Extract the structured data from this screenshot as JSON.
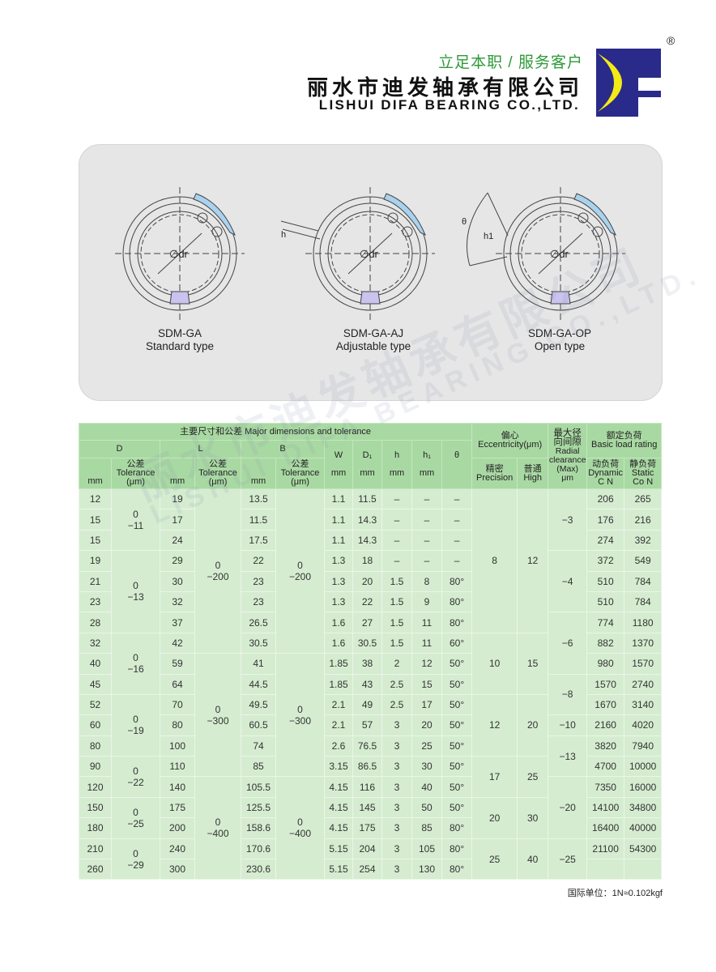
{
  "header": {
    "slogan": "立足本职 / 服务客户",
    "company_cn": "丽水市迪发轴承有限公司",
    "company_en": "LISHUI DIFA BEARING CO.,LTD.",
    "registered_mark": "®",
    "logo_colors": {
      "blue": "#2a2a8a",
      "yellow": "#f3ea16"
    }
  },
  "watermark": {
    "cn": "丽水市迪发轴承有限公司",
    "en": "LISHUI DIFA BEARING CO.,LTD."
  },
  "diagrams": [
    {
      "model": "SDM-GA",
      "type": "Standard type",
      "dim_label": "∅dr"
    },
    {
      "model": "SDM-GA-AJ",
      "type": "Adjustable type",
      "dim_label": "∅dr",
      "gap_label": "h"
    },
    {
      "model": "SDM-GA-OP",
      "type": "Open type",
      "dim_label": "∅dr",
      "gap_label": "h1",
      "angle_label": "θ"
    }
  ],
  "table": {
    "headers": {
      "major": "主要尺寸和公差 Major dimensions and tolerance",
      "ecc_cn": "偏心",
      "ecc_en": "Eccentricity(μm)",
      "radial_cn": "最大径向间隙",
      "radial_en": "Radial clearance (Max)",
      "radial_unit": "μm",
      "load_cn": "额定负荷",
      "load_en": "Basic load rating",
      "D": "D",
      "L": "L",
      "B": "B",
      "W": "W",
      "D1": "D₁",
      "h": "h",
      "h1": "h₁",
      "theta": "θ",
      "mm": "mm",
      "tol_cn": "公差",
      "tol_en": "Tolerance",
      "tol_unit": "(μm)",
      "precision_cn": "精密",
      "precision_en": "Precision",
      "high_cn": "普通",
      "high_en": "High",
      "dynamic_cn": "动负荷",
      "dynamic_en": "Dynamic",
      "dynamic_unit": "C N",
      "static_cn": "静负荷",
      "static_en": "Static",
      "static_unit": "Co N"
    },
    "rows": [
      {
        "D": "12",
        "L": "19",
        "B": "13.5",
        "W": "1.1",
        "D1": "11.5",
        "h": "–",
        "h1": "–",
        "theta": "–",
        "C": "206",
        "Co": "265"
      },
      {
        "D": "15",
        "L": "17",
        "B": "11.5",
        "W": "1.1",
        "D1": "14.3",
        "h": "–",
        "h1": "–",
        "theta": "–",
        "C": "176",
        "Co": "216"
      },
      {
        "D": "15",
        "L": "24",
        "B": "17.5",
        "W": "1.1",
        "D1": "14.3",
        "h": "–",
        "h1": "–",
        "theta": "–",
        "C": "274",
        "Co": "392"
      },
      {
        "D": "19",
        "L": "29",
        "B": "22",
        "W": "1.3",
        "D1": "18",
        "h": "–",
        "h1": "–",
        "theta": "–",
        "C": "372",
        "Co": "549"
      },
      {
        "D": "21",
        "L": "30",
        "B": "23",
        "W": "1.3",
        "D1": "20",
        "h": "1.5",
        "h1": "8",
        "theta": "80°",
        "C": "510",
        "Co": "784"
      },
      {
        "D": "23",
        "L": "32",
        "B": "23",
        "W": "1.3",
        "D1": "22",
        "h": "1.5",
        "h1": "9",
        "theta": "80°",
        "C": "510",
        "Co": "784"
      },
      {
        "D": "28",
        "L": "37",
        "B": "26.5",
        "W": "1.6",
        "D1": "27",
        "h": "1.5",
        "h1": "11",
        "theta": "80°",
        "C": "774",
        "Co": "1180"
      },
      {
        "D": "32",
        "L": "42",
        "B": "30.5",
        "W": "1.6",
        "D1": "30.5",
        "h": "1.5",
        "h1": "11",
        "theta": "60°",
        "C": "882",
        "Co": "1370"
      },
      {
        "D": "40",
        "L": "59",
        "B": "41",
        "W": "1.85",
        "D1": "38",
        "h": "2",
        "h1": "12",
        "theta": "50°",
        "C": "980",
        "Co": "1570"
      },
      {
        "D": "45",
        "L": "64",
        "B": "44.5",
        "W": "1.85",
        "D1": "43",
        "h": "2.5",
        "h1": "15",
        "theta": "50°",
        "C": "1570",
        "Co": "2740"
      },
      {
        "D": "52",
        "L": "70",
        "B": "49.5",
        "W": "2.1",
        "D1": "49",
        "h": "2.5",
        "h1": "17",
        "theta": "50°",
        "C": "1670",
        "Co": "3140"
      },
      {
        "D": "60",
        "L": "80",
        "B": "60.5",
        "W": "2.1",
        "D1": "57",
        "h": "3",
        "h1": "20",
        "theta": "50°",
        "C": "2160",
        "Co": "4020"
      },
      {
        "D": "80",
        "L": "100",
        "B": "74",
        "W": "2.6",
        "D1": "76.5",
        "h": "3",
        "h1": "25",
        "theta": "50°",
        "C": "3820",
        "Co": "7940"
      },
      {
        "D": "90",
        "L": "110",
        "B": "85",
        "W": "3.15",
        "D1": "86.5",
        "h": "3",
        "h1": "30",
        "theta": "50°",
        "C": "4700",
        "Co": "10000"
      },
      {
        "D": "120",
        "L": "140",
        "B": "105.5",
        "W": "4.15",
        "D1": "116",
        "h": "3",
        "h1": "40",
        "theta": "50°",
        "C": "7350",
        "Co": "16000"
      },
      {
        "D": "150",
        "L": "175",
        "B": "125.5",
        "W": "4.15",
        "D1": "145",
        "h": "3",
        "h1": "50",
        "theta": "50°",
        "C": "14100",
        "Co": "34800"
      },
      {
        "D": "180",
        "L": "200",
        "B": "158.6",
        "W": "4.15",
        "D1": "175",
        "h": "3",
        "h1": "85",
        "theta": "80°",
        "C": "16400",
        "Co": "40000"
      },
      {
        "D": "210",
        "L": "240",
        "B": "170.6",
        "W": "5.15",
        "D1": "204",
        "h": "3",
        "h1": "105",
        "theta": "80°",
        "C": "21100",
        "Co": "54300"
      },
      {
        "D": "260",
        "L": "300",
        "B": "230.6",
        "W": "5.15",
        "D1": "254",
        "h": "3",
        "h1": "130",
        "theta": "80°",
        "C": "",
        "Co": ""
      }
    ],
    "groups": {
      "D_tol": [
        {
          "v": "0\n−11",
          "n": 3
        },
        {
          "v": "0\n−13",
          "n": 4
        },
        {
          "v": "0\n−16",
          "n": 3
        },
        {
          "v": "0\n−19",
          "n": 3
        },
        {
          "v": "0\n−22",
          "n": 2
        },
        {
          "v": "0\n−25",
          "n": 2
        },
        {
          "v": "0\n−29",
          "n": 2
        }
      ],
      "L_tol": [
        {
          "v": "0\n−200",
          "n": 8
        },
        {
          "v": "0\n−300",
          "n": 6
        },
        {
          "v": "0\n−400",
          "n": 5
        }
      ],
      "B_tol": [
        {
          "v": "0\n−200",
          "n": 8
        },
        {
          "v": "0\n−300",
          "n": 6
        },
        {
          "v": "0\n−400",
          "n": 5
        }
      ],
      "precision": [
        {
          "v": "8",
          "n": 7
        },
        {
          "v": "10",
          "n": 3
        },
        {
          "v": "12",
          "n": 3
        },
        {
          "v": "17",
          "n": 2
        },
        {
          "v": "20",
          "n": 2
        },
        {
          "v": "25",
          "n": 2
        }
      ],
      "high": [
        {
          "v": "12",
          "n": 7
        },
        {
          "v": "15",
          "n": 3
        },
        {
          "v": "20",
          "n": 3
        },
        {
          "v": "25",
          "n": 2
        },
        {
          "v": "30",
          "n": 2
        },
        {
          "v": "40",
          "n": 2
        }
      ],
      "radial": [
        {
          "v": "−3",
          "n": 3
        },
        {
          "v": "−4",
          "n": 3
        },
        {
          "v": "−6",
          "n": 3
        },
        {
          "v": "−8",
          "n": 2
        },
        {
          "v": "−10",
          "n": 1
        },
        {
          "v": "−13",
          "n": 2
        },
        {
          "v": "−20",
          "n": 3
        },
        {
          "v": "−25",
          "n": 2
        }
      ]
    },
    "note": "国际单位：1N≈0.102kgf"
  }
}
